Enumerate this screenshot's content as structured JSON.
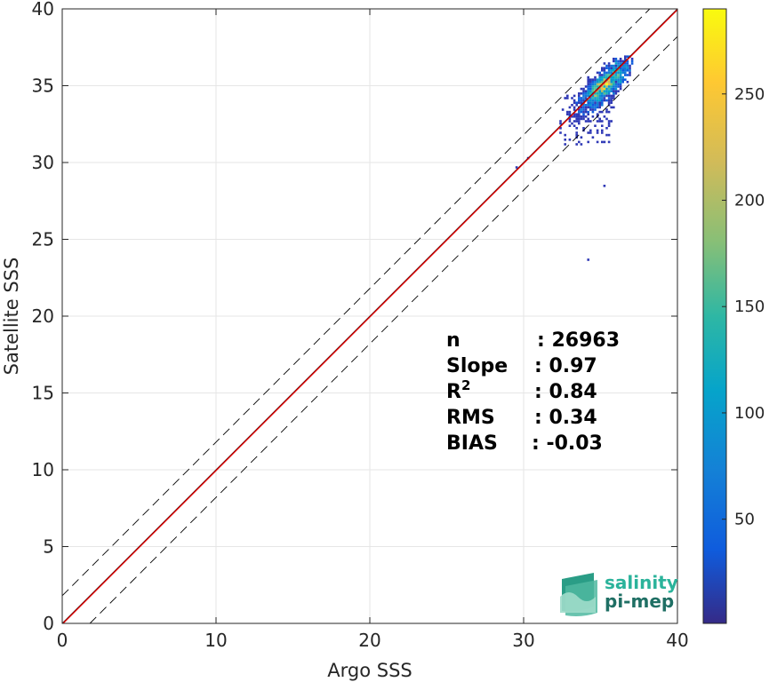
{
  "chart_data": {
    "type": "heatmap",
    "xlabel": "Argo SSS",
    "ylabel": "Satellite SSS",
    "xlim": [
      0,
      40
    ],
    "ylim": [
      0,
      40
    ],
    "xticks": [
      0,
      10,
      20,
      30,
      40
    ],
    "yticks": [
      0,
      5,
      10,
      15,
      20,
      25,
      30,
      35,
      40
    ],
    "grid": true,
    "colormap": "parula",
    "colorbar": {
      "min": 1,
      "max": 290,
      "ticks": [
        50,
        100,
        150,
        200,
        250
      ]
    },
    "density_cluster": {
      "x_center": 35.2,
      "y_center": 35.0,
      "x_range": [
        32.0,
        37.0
      ],
      "y_range": [
        31.0,
        37.0
      ],
      "outliers": [
        [
          29.5,
          29.8
        ],
        [
          30.2,
          30.4
        ],
        [
          35.2,
          28.6
        ],
        [
          34.2,
          23.7
        ]
      ]
    },
    "lines": [
      {
        "name": "identity",
        "slope": 1,
        "intercept": 0,
        "color": "#000000",
        "style": "solid"
      },
      {
        "name": "upper-bound",
        "slope": 1,
        "intercept": 1.8,
        "color": "#000000",
        "style": "dashed"
      },
      {
        "name": "lower-bound",
        "slope": 1,
        "intercept": -1.8,
        "color": "#000000",
        "style": "dashed"
      },
      {
        "name": "regression",
        "slope": 1.0,
        "intercept": -0.05,
        "color": "#e00000",
        "style": "solid"
      }
    ],
    "stats": [
      {
        "label": "n",
        "value": ": 26963"
      },
      {
        "label": "Slope",
        "value": ": 0.97"
      },
      {
        "label": "R",
        "sup": "2",
        "value": ": 0.84"
      },
      {
        "label": "RMS",
        "value": ": 0.34"
      },
      {
        "label": "BIAS",
        "value": ": -0.03"
      }
    ]
  },
  "logo": {
    "line1": "salinity",
    "line2": "pi-mep"
  }
}
